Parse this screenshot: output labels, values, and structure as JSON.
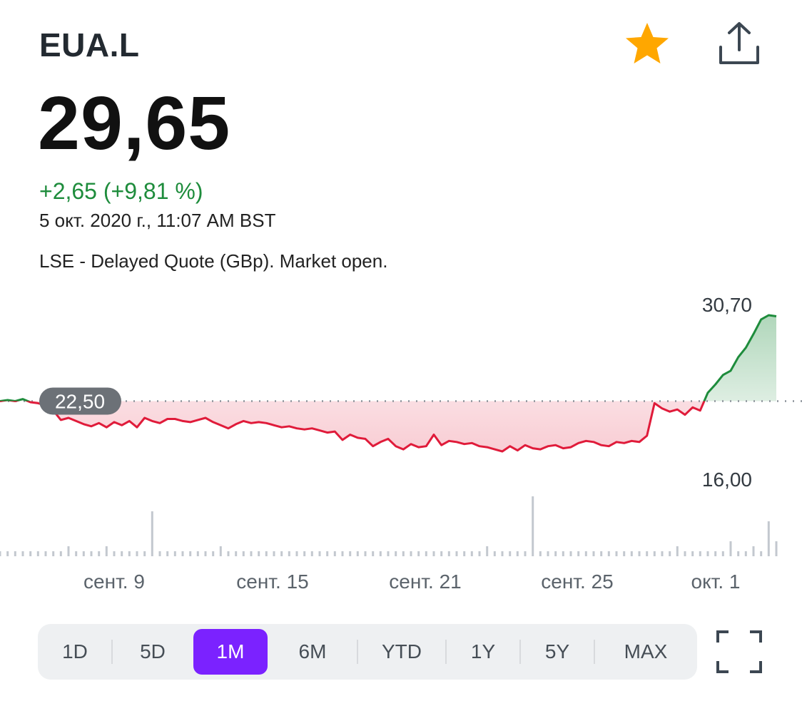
{
  "header": {
    "ticker": "EUA.L",
    "price": "29,65",
    "change": "+2,65 (+9,81 %)",
    "timestamp": "5 окт. 2020 г., 11:07 AM BST",
    "exchange_note": "LSE - Delayed Quote (GBp). Market open."
  },
  "icons": {
    "watchlist": "star-icon",
    "share": "share-icon",
    "fullscreen": "fullscreen-icon"
  },
  "colors": {
    "accent": "#7b22ff",
    "up": "#1e8c3c",
    "down": "#e01b3a",
    "star": "#ffa700"
  },
  "range_tabs": [
    {
      "label": "1D",
      "active": false
    },
    {
      "label": "5D",
      "active": false
    },
    {
      "label": "1M",
      "active": true
    },
    {
      "label": "6M",
      "active": false
    },
    {
      "label": "YTD",
      "active": false
    },
    {
      "label": "1Y",
      "active": false
    },
    {
      "label": "5Y",
      "active": false
    },
    {
      "label": "MAX",
      "active": false
    }
  ],
  "chart_data": {
    "type": "line",
    "previous_close": 22.5,
    "previous_close_label": "22,50",
    "high_label": "30,70",
    "low_label": "16,00",
    "ylim": [
      16.0,
      30.7
    ],
    "x_ticks": [
      "сент. 9",
      "сент. 15",
      "сент. 21",
      "сент. 25",
      "окт. 1"
    ],
    "series": [
      {
        "values": [
          22.5,
          22.6,
          22.5,
          22.7,
          22.4,
          22.3,
          22.1,
          21.6,
          20.7,
          20.9,
          20.6,
          20.3,
          20.1,
          20.4,
          20.0,
          20.5,
          20.2,
          20.6,
          20.0,
          20.9,
          20.6,
          20.4,
          20.8,
          20.8,
          20.6,
          20.5,
          20.7,
          20.9,
          20.5,
          20.2,
          19.9,
          20.3,
          20.6,
          20.4,
          20.5,
          20.4,
          20.2,
          20.0,
          20.1,
          19.9,
          19.8,
          19.9,
          19.7,
          19.5,
          19.6,
          18.8,
          19.3,
          19.0,
          18.9,
          18.2,
          18.6,
          18.9,
          18.2,
          17.9,
          18.4,
          18.1,
          18.2,
          19.3,
          18.3,
          18.7,
          18.6,
          18.4,
          18.5,
          18.2,
          18.1,
          17.9,
          17.7,
          18.2,
          17.8,
          18.3,
          18.0,
          17.9,
          18.2,
          18.3,
          18.0,
          18.1,
          18.5,
          18.7,
          18.6,
          18.3,
          18.2,
          18.6,
          18.5,
          18.7,
          18.6,
          19.2,
          22.3,
          21.8,
          21.5,
          21.7,
          21.2,
          21.9,
          21.6,
          23.3,
          24.1,
          25.0,
          25.4,
          26.7,
          27.6,
          28.9,
          30.3,
          30.7,
          30.6
        ],
        "color": "#e01b3a"
      }
    ],
    "volume": [
      1,
      1,
      1,
      1,
      1,
      1,
      1,
      1,
      1,
      2,
      1,
      1,
      1,
      1,
      2,
      1,
      1,
      1,
      1,
      1,
      9,
      1,
      1,
      1,
      1,
      1,
      1,
      1,
      1,
      2,
      1,
      1,
      1,
      1,
      1,
      1,
      1,
      1,
      1,
      1,
      1,
      1,
      1,
      1,
      1,
      1,
      1,
      1,
      1,
      1,
      1,
      1,
      1,
      1,
      1,
      1,
      1,
      1,
      1,
      1,
      1,
      1,
      1,
      1,
      2,
      1,
      1,
      1,
      1,
      1,
      12,
      1,
      1,
      1,
      1,
      1,
      1,
      1,
      1,
      1,
      1,
      1,
      1,
      1,
      1,
      1,
      1,
      1,
      1,
      2,
      1,
      1,
      1,
      1,
      1,
      1,
      3,
      1,
      1,
      2,
      1,
      7,
      3
    ],
    "grid": false,
    "legend": "none"
  }
}
